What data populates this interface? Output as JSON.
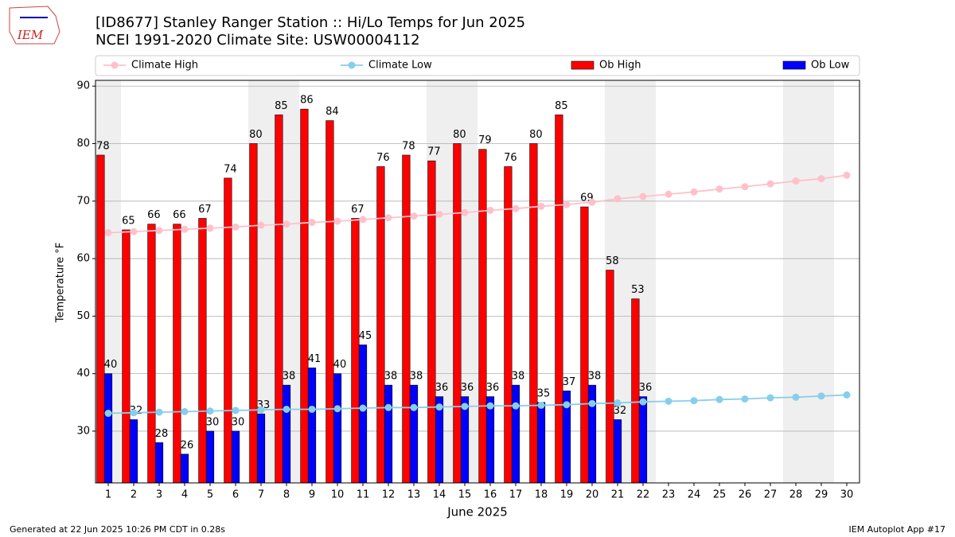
{
  "chart_data": {
    "type": "bar",
    "title": "[ID8677] Stanley Ranger Station :: Hi/Lo Temps for Jun 2025",
    "subtitle": "NCEI 1991-2020 Climate Site: USW00004112",
    "logo_text": "IEM",
    "x_label": "June 2025",
    "y_label": "Temperature °F",
    "footer_left": "Generated at 22 Jun 2025 10:26 PM CDT in 0.28s",
    "footer_right": "IEM Autoplot App #17",
    "x": [
      1,
      2,
      3,
      4,
      5,
      6,
      7,
      8,
      9,
      10,
      11,
      12,
      13,
      14,
      15,
      16,
      17,
      18,
      19,
      20,
      21,
      22,
      23,
      24,
      25,
      26,
      27,
      28,
      29,
      30
    ],
    "xticks": [
      1,
      2,
      3,
      4,
      5,
      6,
      7,
      8,
      9,
      10,
      11,
      12,
      13,
      14,
      15,
      16,
      17,
      18,
      19,
      20,
      21,
      22,
      23,
      24,
      25,
      26,
      27,
      28,
      29,
      30
    ],
    "xlim": [
      0.5,
      30.5
    ],
    "ylim": [
      21,
      91
    ],
    "yticks": [
      30,
      40,
      50,
      60,
      70,
      80,
      90
    ],
    "grid": true,
    "legend": "top",
    "weekend_days": [
      1,
      7,
      8,
      14,
      15,
      21,
      22,
      28,
      29
    ],
    "weekend_color": "#efefef",
    "series": [
      {
        "name": "Climate High",
        "kind": "line",
        "color": "#ffc0cb",
        "values": [
          64.5,
          64.7,
          64.9,
          65.1,
          65.3,
          65.5,
          65.8,
          66.0,
          66.3,
          66.5,
          66.8,
          67.1,
          67.4,
          67.7,
          68.0,
          68.4,
          68.7,
          69.1,
          69.4,
          69.8,
          70.4,
          70.8,
          71.2,
          71.6,
          72.1,
          72.5,
          73.0,
          73.5,
          73.9,
          74.5
        ]
      },
      {
        "name": "Climate Low",
        "kind": "line",
        "color": "#87ceeb",
        "values": [
          33.1,
          33.2,
          33.3,
          33.4,
          33.5,
          33.6,
          33.7,
          33.8,
          33.8,
          33.9,
          34.0,
          34.1,
          34.1,
          34.2,
          34.3,
          34.4,
          34.4,
          34.5,
          34.6,
          34.8,
          34.9,
          35.1,
          35.2,
          35.3,
          35.5,
          35.6,
          35.8,
          35.9,
          36.1,
          36.3
        ]
      },
      {
        "name": "Ob High",
        "kind": "bar",
        "color": "#ff0000",
        "values": [
          78,
          65,
          66,
          66,
          67,
          74,
          80,
          85,
          86,
          84,
          67,
          76,
          78,
          77,
          80,
          79,
          76,
          80,
          85,
          69,
          58,
          53,
          null,
          null,
          null,
          null,
          null,
          null,
          null,
          null
        ]
      },
      {
        "name": "Ob Low",
        "kind": "bar",
        "color": "#0000ff",
        "values": [
          40,
          32,
          28,
          26,
          30,
          30,
          33,
          38,
          41,
          40,
          45,
          38,
          38,
          36,
          36,
          36,
          38,
          35,
          37,
          38,
          32,
          36,
          null,
          null,
          null,
          null,
          null,
          null,
          null,
          null
        ]
      }
    ]
  }
}
